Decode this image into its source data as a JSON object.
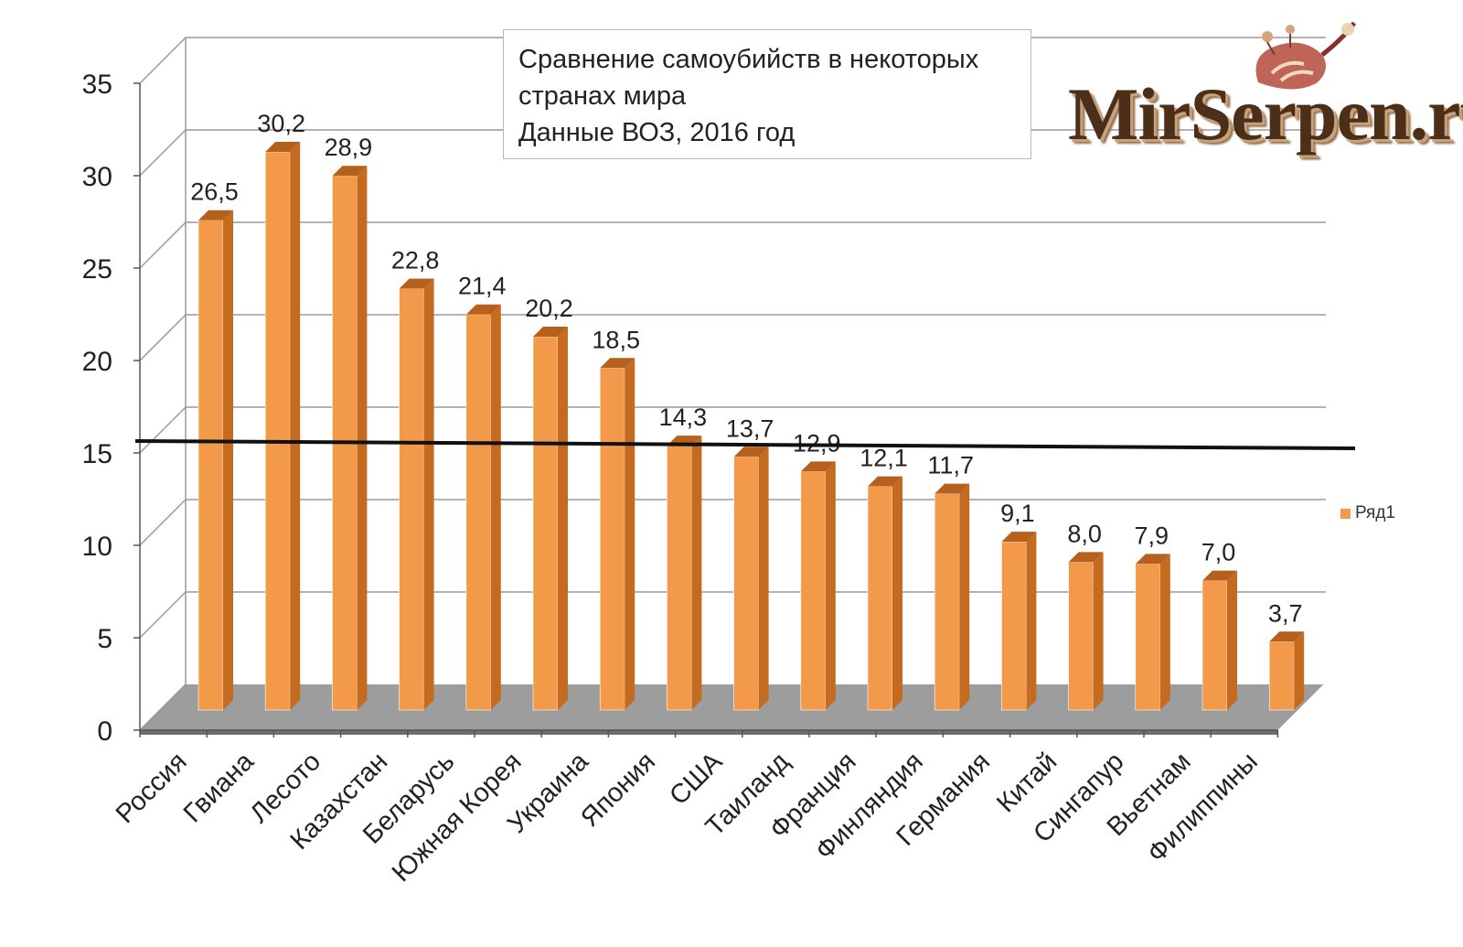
{
  "title": {
    "lines": [
      "Сравнение самоубийств в некоторых",
      "странах мира",
      "Данные ВОЗ, 2016 год"
    ]
  },
  "brand": {
    "text": "MirSerpen.ru",
    "icon": "shrimp-logo-icon"
  },
  "legend": {
    "label": "Ряд1"
  },
  "colors": {
    "bar_front": "#f29a4a",
    "bar_side": "#c56b1f",
    "bar_top": "#b5611d",
    "floor": "#8c8c8c",
    "reference_line": "#111111",
    "grid": "#9a9a9a"
  },
  "chart_data": {
    "type": "bar",
    "title": "Сравнение самоубийств в некоторых странах мира Данные ВОЗ, 2016 год",
    "xlabel": "",
    "ylabel": "",
    "ylim": [
      0,
      35
    ],
    "yticks": [
      "0",
      "5",
      "10",
      "15",
      "20",
      "25",
      "30",
      "35"
    ],
    "grid": true,
    "legend_position": "right",
    "categories": [
      "Россия",
      "Гвиана",
      "Лесото",
      "Казахстан",
      "Беларусь",
      "Южная Корея",
      "Украина",
      "Япония",
      "США",
      "Таиланд",
      "Франция",
      "Финляндия",
      "Германия",
      "Китай",
      "Сингапур",
      "Вьетнам",
      "Филиппины"
    ],
    "series": [
      {
        "name": "Ряд1",
        "values": [
          26.5,
          30.2,
          28.9,
          22.8,
          21.4,
          20.2,
          18.5,
          14.3,
          13.7,
          12.9,
          12.1,
          11.7,
          9.1,
          8.0,
          7.9,
          7.0,
          3.7
        ],
        "labels": [
          "26,5",
          "30,2",
          "28,9",
          "22,8",
          "21,4",
          "20,2",
          "18,5",
          "14,3",
          "13,7",
          "12,9",
          "12,1",
          "11,7",
          "9,1",
          "8,0",
          "7,9",
          "7,0",
          "3,7"
        ]
      }
    ],
    "reference_line": {
      "value": 15
    }
  }
}
